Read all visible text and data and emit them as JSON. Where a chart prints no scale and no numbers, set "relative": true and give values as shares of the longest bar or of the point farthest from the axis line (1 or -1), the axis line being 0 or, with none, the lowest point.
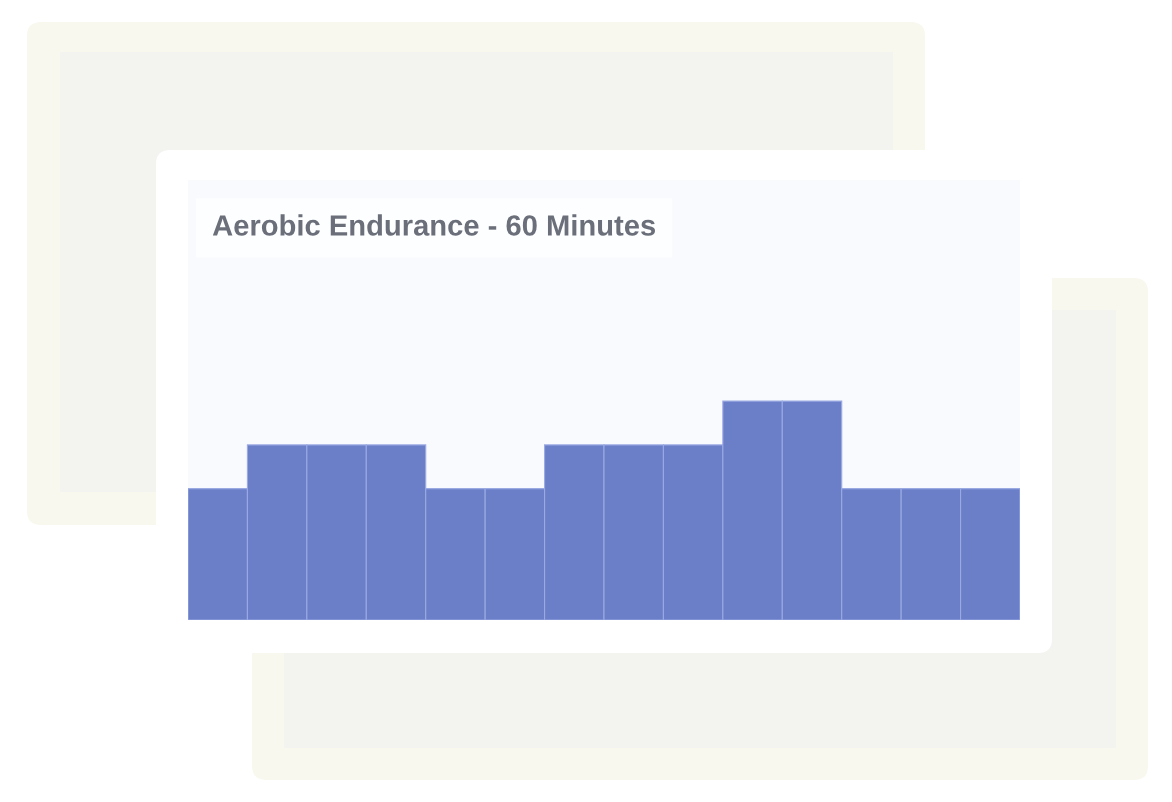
{
  "chart_data": {
    "type": "bar",
    "title": "Aerobic Endurance - 60 Minutes",
    "categories": [
      null,
      null,
      null,
      null,
      null,
      null,
      null,
      null,
      null,
      null,
      null,
      null,
      null,
      null
    ],
    "values": [
      0.6,
      0.8,
      0.8,
      0.8,
      0.6,
      0.6,
      0.8,
      0.8,
      0.8,
      1,
      1,
      0.6,
      0.6,
      0.6
    ],
    "color": "#6b7fc9",
    "relative": true
  }
}
